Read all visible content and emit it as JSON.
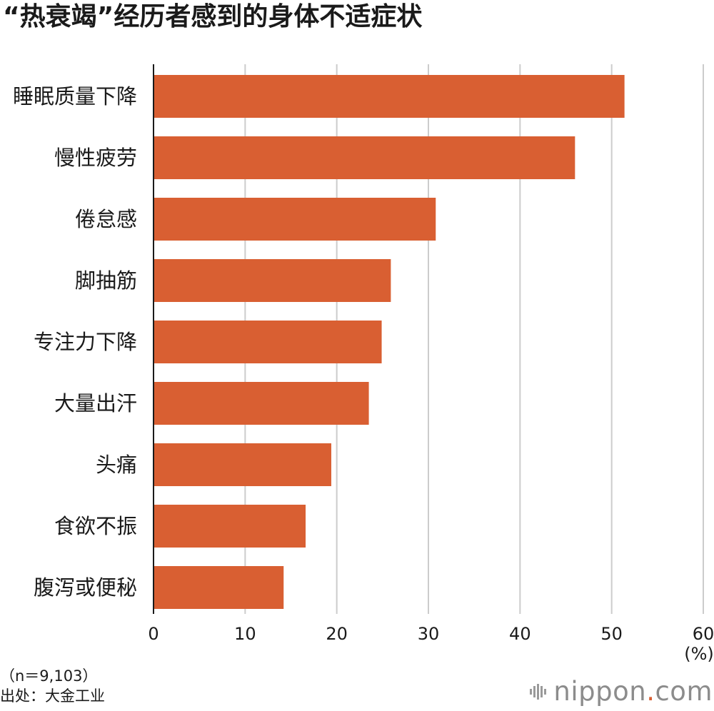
{
  "title": "“热衰竭”经历者感到的身体不适症状",
  "footer": {
    "sample": "（n＝9,103）",
    "source": "出处：大金工业"
  },
  "brand": {
    "name": "nippon",
    "dot": ".",
    "tld": "com"
  },
  "colors": {
    "bar": "#d95f32",
    "grid": "#cccccc",
    "axis": "#1a1a1a"
  },
  "chart_data": {
    "type": "bar",
    "orientation": "horizontal",
    "title": "“热衰竭”经历者感到的身体不适症状",
    "categories": [
      "睡眠质量下降",
      "慢性疲劳",
      "倦怠感",
      "脚抽筋",
      "专注力下降",
      "大量出汗",
      "头痛",
      "食欲不振",
      "腹泻或便秘"
    ],
    "values": [
      51.4,
      46.0,
      30.8,
      25.9,
      24.9,
      23.5,
      19.4,
      16.6,
      14.2
    ],
    "xlabel": "",
    "unit": "(%)",
    "xlim": [
      0,
      60
    ],
    "xticks": [
      0,
      10,
      20,
      30,
      40,
      50,
      60
    ],
    "grid": true
  }
}
